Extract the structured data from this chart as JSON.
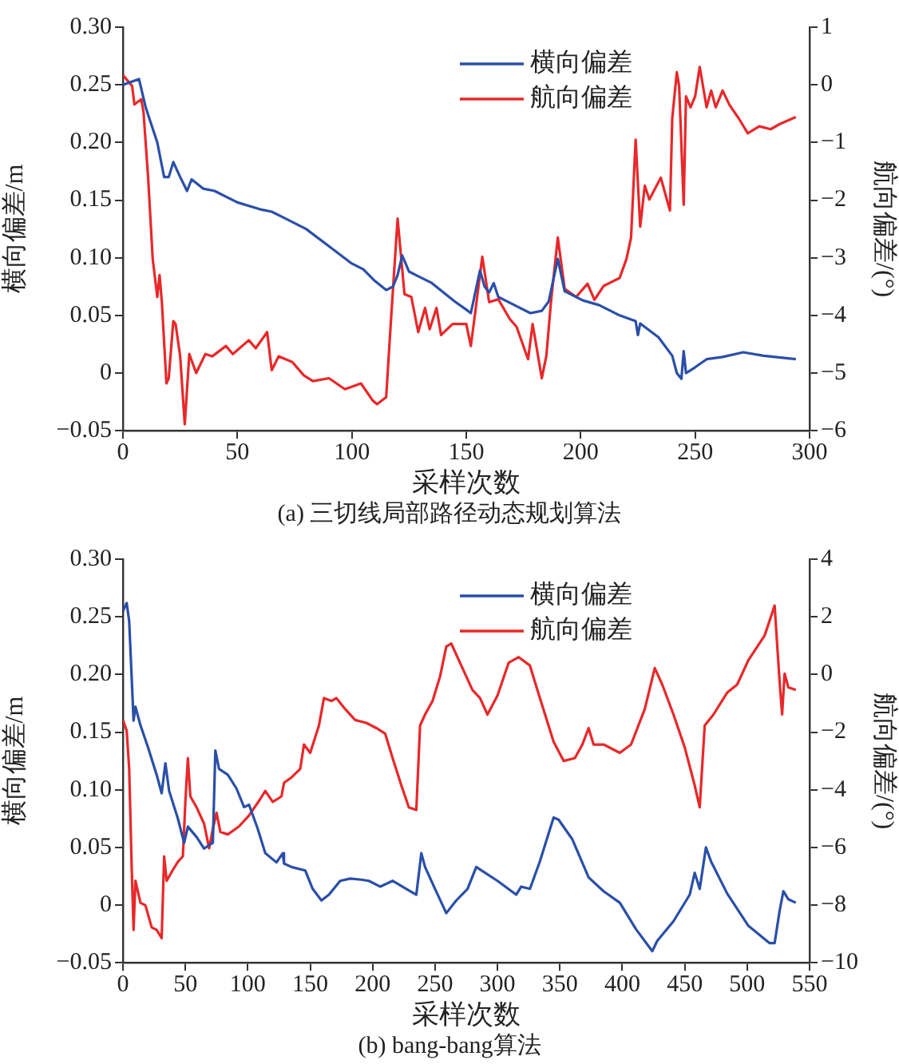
{
  "chart_data": [
    {
      "type": "line",
      "title": "(a) 三切线局部路径动态规划算法",
      "xlabel": "采样次数",
      "ylabel": "横向偏差/m",
      "y2label": "航向偏差/(°)",
      "legend": "top right",
      "grid": false,
      "xlim": [
        0,
        300
      ],
      "xticks": [
        0,
        50,
        100,
        150,
        200,
        250,
        300
      ],
      "ylim": [
        -0.05,
        0.3
      ],
      "yticks": [
        {
          "value": -0.05,
          "label": "−0.05"
        },
        0,
        0.05,
        {
          "value": 0.1,
          "label": "0.10"
        },
        0.15,
        {
          "value": 0.2,
          "label": "0.20"
        },
        0.25,
        {
          "value": 0.3,
          "label": "0.30"
        }
      ],
      "y2lim": [
        -6,
        1
      ],
      "y2ticks": [
        {
          "value": -6,
          "label": "−6"
        },
        {
          "value": -5,
          "label": "−5"
        },
        {
          "value": -4,
          "label": "−4"
        },
        {
          "value": -3,
          "label": "−3"
        },
        {
          "value": -2,
          "label": "−2"
        },
        {
          "value": -1,
          "label": "−1"
        },
        0,
        1
      ],
      "series": [
        {
          "name": "横向偏差",
          "color": "#2a4fa8",
          "axis": "y",
          "x": [
            0,
            7,
            10,
            15,
            18,
            20,
            22,
            25,
            28,
            30,
            35,
            40,
            50,
            60,
            65,
            70,
            80,
            90,
            100,
            105,
            110,
            115,
            118,
            120,
            122,
            125,
            128,
            135,
            140,
            145,
            150,
            152,
            156,
            158,
            160,
            162,
            164,
            171,
            178,
            183,
            186,
            190,
            193,
            201,
            208,
            217,
            224,
            225,
            226,
            234,
            240,
            242,
            244,
            245,
            246,
            250,
            255,
            262,
            271,
            280,
            294
          ],
          "values": [
            0.25,
            0.255,
            0.23,
            0.2,
            0.17,
            0.17,
            0.183,
            0.17,
            0.158,
            0.168,
            0.16,
            0.158,
            0.148,
            0.142,
            0.14,
            0.135,
            0.125,
            0.11,
            0.095,
            0.09,
            0.08,
            0.072,
            0.075,
            0.085,
            0.102,
            0.088,
            0.085,
            0.078,
            0.07,
            0.062,
            0.055,
            0.052,
            0.089,
            0.075,
            0.07,
            0.078,
            0.066,
            0.059,
            0.052,
            0.054,
            0.062,
            0.099,
            0.071,
            0.063,
            0.059,
            0.05,
            0.045,
            0.033,
            0.043,
            0.031,
            0.015,
            0,
            -0.005,
            0.019,
            0,
            0.005,
            0.012,
            0.014,
            0.018,
            0.015,
            0.012
          ]
        },
        {
          "name": "航向偏差",
          "color": "#e8282a",
          "axis": "y2",
          "x": [
            0,
            4,
            5,
            8,
            9,
            11,
            13,
            15,
            16,
            17,
            19,
            20,
            22,
            23,
            25,
            27,
            29,
            32,
            36,
            39,
            45,
            48,
            55,
            58,
            63,
            65,
            68,
            74,
            79,
            83,
            90,
            97,
            104,
            109,
            111,
            115,
            117,
            120,
            123,
            126,
            129,
            132,
            134,
            137,
            139,
            144,
            150,
            152,
            154,
            157,
            160,
            164,
            169,
            172,
            177,
            179,
            183,
            185,
            187,
            190,
            193,
            198,
            203,
            206,
            210,
            217,
            220,
            222,
            224,
            226,
            228,
            230,
            235,
            237,
            239,
            240,
            242,
            243,
            245,
            246,
            248,
            250,
            252,
            255,
            257,
            259,
            262,
            265,
            269,
            273,
            278,
            283,
            287,
            294
          ],
          "values": [
            0.17,
            -0.02,
            -0.34,
            -0.25,
            -0.48,
            -1.61,
            -3.02,
            -3.68,
            -3.3,
            -3.77,
            -5.18,
            -5.09,
            -4.1,
            -4.15,
            -4.71,
            -5.89,
            -4.67,
            -5,
            -4.67,
            -4.71,
            -4.53,
            -4.67,
            -4.43,
            -4.57,
            -4.29,
            -4.95,
            -4.71,
            -4.81,
            -5.04,
            -5.14,
            -5.09,
            -5.28,
            -5.18,
            -5.47,
            -5.54,
            -5.42,
            -4.15,
            -2.32,
            -3.63,
            -3.68,
            -4.29,
            -3.87,
            -4.24,
            -3.87,
            -4.34,
            -4.15,
            -4.15,
            -4.53,
            -3.92,
            -2.98,
            -3.77,
            -3.72,
            -4.06,
            -4.2,
            -4.76,
            -4.15,
            -5.09,
            -4.7,
            -3.77,
            -2.65,
            -3.54,
            -3.68,
            -3.45,
            -3.73,
            -3.49,
            -3.35,
            -3.02,
            -2.65,
            -0.95,
            -2.46,
            -1.75,
            -1.99,
            -1.61,
            -1.9,
            -2.18,
            -0.58,
            0.22,
            -0.02,
            -2.08,
            -0.2,
            -0.39,
            -0.2,
            0.31,
            -0.39,
            -0.1,
            -0.39,
            -0.1,
            -0.35,
            -0.58,
            -0.84,
            -0.72,
            -0.77,
            -0.68,
            -0.56
          ]
        }
      ]
    },
    {
      "type": "line",
      "title": "(b) bang-bang算法",
      "xlabel": "采样次数",
      "ylabel": "横向偏差/m",
      "y2label": "航向偏差/(°)",
      "legend": "top right",
      "grid": false,
      "xlim": [
        0,
        550
      ],
      "xticks": [
        0,
        50,
        100,
        150,
        200,
        250,
        300,
        350,
        400,
        450,
        500,
        550
      ],
      "ylim": [
        -0.05,
        0.3
      ],
      "yticks": [
        {
          "value": -0.05,
          "label": "−0.05"
        },
        0,
        0.05,
        {
          "value": 0.1,
          "label": "0.10"
        },
        0.15,
        {
          "value": 0.2,
          "label": "0.20"
        },
        0.25,
        {
          "value": 0.3,
          "label": "0.30"
        }
      ],
      "y2lim": [
        -10,
        4
      ],
      "y2ticks": [
        {
          "value": -10,
          "label": "−10"
        },
        {
          "value": -8,
          "label": "−8"
        },
        {
          "value": -6,
          "label": "−6"
        },
        {
          "value": -4,
          "label": "−4"
        },
        {
          "value": -2,
          "label": "−2"
        },
        0,
        2,
        4
      ],
      "series": [
        {
          "name": "横向偏差",
          "color": "#2a4fa8",
          "axis": "y",
          "x": [
            0,
            3,
            5,
            8.5,
            10,
            14,
            20,
            27,
            31,
            34,
            37,
            44,
            49,
            52,
            59,
            65,
            69,
            72,
            74,
            77,
            84,
            91,
            97,
            101,
            108,
            114,
            123,
            128,
            129,
            135,
            146,
            152,
            159,
            165,
            174,
            182,
            191,
            197,
            206,
            216,
            227,
            235,
            239,
            242,
            250,
            259,
            267,
            276,
            283,
            300,
            315,
            319,
            326,
            334,
            345,
            349,
            360,
            373,
            385,
            398,
            411,
            424,
            428,
            441,
            454,
            458,
            462,
            467,
            471,
            484,
            501,
            518,
            522,
            526,
            529,
            533,
            539
          ],
          "values": [
            0.255,
            0.262,
            0.246,
            0.16,
            0.172,
            0.156,
            0.137,
            0.113,
            0.097,
            0.123,
            0.099,
            0.075,
            0.054,
            0.068,
            0.059,
            0.049,
            0.052,
            0.054,
            0.134,
            0.118,
            0.113,
            0.101,
            0.085,
            0.087,
            0.066,
            0.045,
            0.037,
            0.045,
            0.036,
            0.033,
            0.03,
            0.014,
            0.004,
            0.009,
            0.021,
            0.023,
            0.022,
            0.021,
            0.016,
            0.021,
            0.014,
            0.009,
            0.045,
            0.033,
            0.014,
            -0.007,
            0.004,
            0.014,
            0.033,
            0.021,
            0.009,
            0.016,
            0.014,
            0.038,
            0.076,
            0.074,
            0.057,
            0.024,
            0.012,
            0.002,
            -0.021,
            -0.04,
            -0.031,
            -0.014,
            0.009,
            0.028,
            0.014,
            0.05,
            0.038,
            0.01,
            -0.018,
            -0.033,
            -0.033,
            -0.005,
            0.012,
            0.005,
            0.002
          ]
        },
        {
          "name": "航向偏差",
          "color": "#e8282a",
          "axis": "y2",
          "x": [
            0,
            3,
            5,
            7,
            8.5,
            10,
            14,
            18,
            23,
            27,
            31,
            33,
            35,
            40,
            44,
            48,
            50,
            52,
            54,
            59,
            65,
            69,
            72,
            75,
            78,
            84,
            93,
            101,
            110,
            114,
            120,
            127,
            129,
            135,
            142,
            145,
            150,
            157,
            161,
            167,
            171,
            178,
            186,
            195,
            203,
            210,
            216,
            223,
            229,
            235,
            238,
            242,
            248,
            254,
            259,
            263,
            271,
            280,
            286,
            292,
            300,
            309,
            317,
            326,
            334,
            345,
            353,
            362,
            368,
            373,
            377,
            385,
            398,
            407,
            418,
            426,
            432,
            441,
            450,
            458,
            462,
            466,
            473,
            484,
            492,
            501,
            514,
            522,
            526,
            528,
            530,
            533,
            539
          ],
          "values": [
            -1.58,
            -1.96,
            -3.28,
            -6.69,
            -8.86,
            -7.16,
            -7.92,
            -8.01,
            -8.77,
            -8.86,
            -9.15,
            -6.31,
            -7.16,
            -6.78,
            -6.5,
            -6.31,
            -4.42,
            -2.9,
            -4.23,
            -4.61,
            -5.18,
            -6.03,
            -5.36,
            -4.8,
            -5.46,
            -5.55,
            -5.27,
            -4.89,
            -4.32,
            -4.04,
            -4.42,
            -4.23,
            -3.76,
            -3.57,
            -3.28,
            -2.43,
            -2.72,
            -1.77,
            -0.82,
            -0.92,
            -0.82,
            -1.2,
            -1.58,
            -1.68,
            -1.86,
            -2.05,
            -2.9,
            -3.85,
            -4.61,
            -4.7,
            -1.77,
            -1.39,
            -0.92,
            -0.07,
            0.97,
            1.07,
            0.31,
            -0.54,
            -0.82,
            -1.39,
            -0.73,
            0.41,
            0.6,
            0.31,
            -0.82,
            -2.34,
            -3,
            -2.9,
            -2.43,
            -1.86,
            -2.43,
            -2.43,
            -2.72,
            -2.43,
            -1.2,
            0.22,
            -0.35,
            -1.39,
            -2.53,
            -3.85,
            -4.61,
            -1.77,
            -1.39,
            -0.63,
            -0.35,
            0.5,
            1.35,
            2.39,
            -0.26,
            -1.39,
            0.03,
            -0.45,
            -0.54
          ]
        }
      ]
    }
  ]
}
